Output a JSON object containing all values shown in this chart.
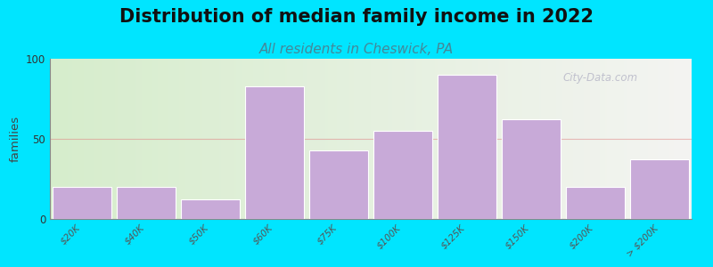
{
  "title": "Distribution of median family income in 2022",
  "subtitle": "All residents in Cheswick, PA",
  "ylabel": "families",
  "categories": [
    "$20K",
    "$40K",
    "$50K",
    "$60K",
    "$75K",
    "$100K",
    "$125K",
    "$150K",
    "$200K",
    "> $200K"
  ],
  "values": [
    20,
    20,
    12,
    83,
    43,
    55,
    90,
    62,
    20,
    37
  ],
  "bar_color": "#c8aad8",
  "bar_edgecolor": "#ffffff",
  "ylim": [
    0,
    100
  ],
  "yticks": [
    0,
    50,
    100
  ],
  "background_color": "#00e5ff",
  "bg_left_color": "#d6edcc",
  "bg_right_color": "#f4f4f2",
  "title_fontsize": 15,
  "subtitle_fontsize": 11,
  "subtitle_color": "#448899",
  "watermark_text": "City-Data.com",
  "grid_color": "#e08080",
  "grid_alpha": 0.5,
  "grid_linewidth": 0.8
}
